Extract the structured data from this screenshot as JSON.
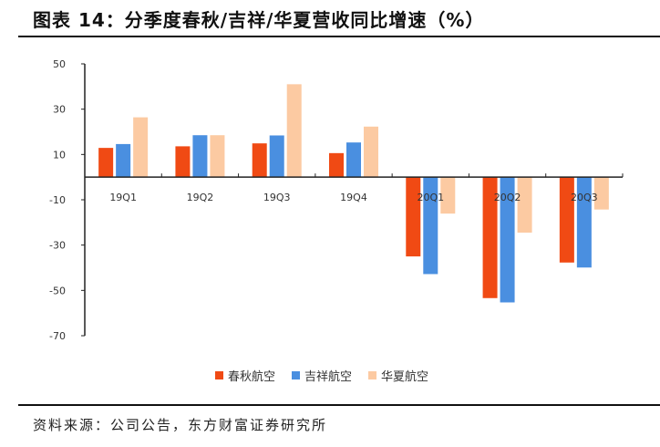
{
  "title": "图表 14：分季度春秋/吉祥/华夏营收同比增速（%）",
  "source": "资料来源：公司公告，东方财富证券研究所",
  "chart_data": {
    "type": "bar",
    "categories": [
      "19Q1",
      "19Q2",
      "19Q3",
      "19Q4",
      "20Q1",
      "20Q2",
      "20Q3"
    ],
    "series": [
      {
        "name": "春秋航空",
        "color": "#f04a14",
        "values": [
          12.9,
          13.6,
          14.9,
          10.6,
          -35.0,
          -53.4,
          -37.7
        ]
      },
      {
        "name": "吉祥航空",
        "color": "#4a8fe0",
        "values": [
          14.6,
          18.5,
          18.4,
          15.3,
          -42.8,
          -55.3,
          -39.9
        ]
      },
      {
        "name": "华夏航空",
        "color": "#fccaa2",
        "values": [
          26.4,
          18.5,
          41.0,
          22.3,
          -16.1,
          -24.5,
          -14.3
        ]
      }
    ],
    "yticks": [
      50,
      30,
      10,
      -10,
      -30,
      -50,
      -70
    ],
    "ylim": [
      -70,
      50
    ],
    "legend": "bottom",
    "grid": false
  }
}
